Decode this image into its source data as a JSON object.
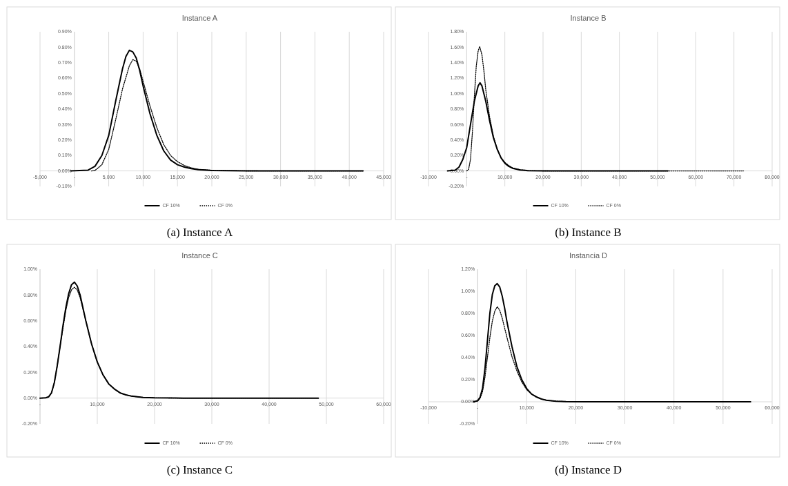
{
  "chart_data": [
    {
      "type": "line",
      "title": "Instance A",
      "xlim": [
        -5000,
        45000
      ],
      "ylim": [
        -0.1,
        0.9
      ],
      "xticks": [
        {
          "value": -5000,
          "label": "-5,000"
        },
        {
          "value": 0,
          "label": "-"
        },
        {
          "value": 5000,
          "label": "5,000"
        },
        {
          "value": 10000,
          "label": "10,000"
        },
        {
          "value": 15000,
          "label": "15,000"
        },
        {
          "value": 20000,
          "label": "20,000"
        },
        {
          "value": 25000,
          "label": "25,000"
        },
        {
          "value": 30000,
          "label": "30,000"
        },
        {
          "value": 35000,
          "label": "35,000"
        },
        {
          "value": 40000,
          "label": "40,000"
        },
        {
          "value": 45000,
          "label": "45,000"
        }
      ],
      "yticks": [
        {
          "value": -0.1,
          "label": "-0.10%"
        },
        {
          "value": 0,
          "label": "0.00%"
        },
        {
          "value": 0.1,
          "label": "0.10%"
        },
        {
          "value": 0.2,
          "label": "0.20%"
        },
        {
          "value": 0.3,
          "label": "0.30%"
        },
        {
          "value": 0.4,
          "label": "0.40%"
        },
        {
          "value": 0.5,
          "label": "0.50%"
        },
        {
          "value": 0.6,
          "label": "0.60%"
        },
        {
          "value": 0.7,
          "label": "0.70%"
        },
        {
          "value": 0.8,
          "label": "0.80%"
        },
        {
          "value": 0.9,
          "label": "0.90%"
        }
      ],
      "grid": "x",
      "legend": "bottom",
      "annotations": [
        "(a) Instance A"
      ],
      "series": [
        {
          "name": "CF 10%",
          "color": "#000000",
          "line_style": "solid",
          "x": [
            -500,
            2000,
            3000,
            4000,
            5000,
            6000,
            7000,
            7500,
            8000,
            8500,
            9000,
            9500,
            10000,
            11000,
            12000,
            13000,
            14000,
            15000,
            16000,
            17000,
            18000,
            20000,
            25000,
            30000,
            42000
          ],
          "values": [
            0,
            0.005,
            0.03,
            0.1,
            0.23,
            0.45,
            0.66,
            0.74,
            0.78,
            0.77,
            0.73,
            0.65,
            0.55,
            0.37,
            0.23,
            0.13,
            0.07,
            0.04,
            0.025,
            0.015,
            0.008,
            0.003,
            0.0005,
            0,
            0
          ]
        },
        {
          "name": "CF 0%",
          "color": "#000000",
          "line_style": "dotted",
          "x": [
            2500,
            3000,
            4000,
            5000,
            6000,
            7000,
            8000,
            8500,
            9000,
            9500,
            10000,
            11000,
            12000,
            13000,
            14000,
            15000,
            16000,
            17000,
            18000,
            20000,
            25000,
            30000,
            42000
          ],
          "values": [
            0,
            0.003,
            0.04,
            0.14,
            0.33,
            0.53,
            0.68,
            0.72,
            0.71,
            0.66,
            0.58,
            0.42,
            0.28,
            0.17,
            0.1,
            0.06,
            0.035,
            0.02,
            0.011,
            0.004,
            0.0005,
            0,
            0
          ]
        }
      ]
    },
    {
      "type": "line",
      "title": "Instance B",
      "xlim": [
        -10000,
        80000
      ],
      "ylim": [
        -0.2,
        1.8
      ],
      "xticks": [
        {
          "value": -10000,
          "label": "-10,000"
        },
        {
          "value": 0,
          "label": "-"
        },
        {
          "value": 10000,
          "label": "10,000"
        },
        {
          "value": 20000,
          "label": "20,000"
        },
        {
          "value": 30000,
          "label": "30,000"
        },
        {
          "value": 40000,
          "label": "40,000"
        },
        {
          "value": 50000,
          "label": "50,000"
        },
        {
          "value": 60000,
          "label": "60,000"
        },
        {
          "value": 70000,
          "label": "70,000"
        },
        {
          "value": 80000,
          "label": "80,000"
        }
      ],
      "yticks": [
        {
          "value": -0.2,
          "label": "-0.20%"
        },
        {
          "value": 0,
          "label": "0.00%"
        },
        {
          "value": 0.2,
          "label": "0.20%"
        },
        {
          "value": 0.4,
          "label": "0.40%"
        },
        {
          "value": 0.6,
          "label": "0.60%"
        },
        {
          "value": 0.8,
          "label": "0.80%"
        },
        {
          "value": 1.0,
          "label": "1.00%"
        },
        {
          "value": 1.2,
          "label": "1.20%"
        },
        {
          "value": 1.4,
          "label": "1.40%"
        },
        {
          "value": 1.6,
          "label": "1.60%"
        },
        {
          "value": 1.8,
          "label": "1.80%"
        }
      ],
      "grid": "x",
      "legend": "bottom",
      "annotations": [
        "(b) Instance B"
      ],
      "series": [
        {
          "name": "CF 10%",
          "color": "#000000",
          "line_style": "solid",
          "x": [
            -5000,
            -3000,
            -2000,
            -1000,
            0,
            1000,
            2000,
            3000,
            3500,
            4000,
            5000,
            6000,
            7000,
            8000,
            9000,
            10000,
            11000,
            12000,
            14000,
            16000,
            20000,
            25000,
            52700
          ],
          "values": [
            0,
            0.01,
            0.05,
            0.15,
            0.3,
            0.6,
            0.9,
            1.1,
            1.14,
            1.1,
            0.9,
            0.65,
            0.43,
            0.28,
            0.17,
            0.1,
            0.06,
            0.035,
            0.012,
            0.004,
            0.001,
            0,
            0
          ]
        },
        {
          "name": "CF 0%",
          "color": "#000000",
          "line_style": "dotted",
          "x": [
            0,
            500,
            1000,
            1500,
            2000,
            2500,
            3000,
            3400,
            4000,
            4500,
            5000,
            6000,
            7000,
            8000,
            9000,
            10000,
            11000,
            12000,
            14000,
            16000,
            20000,
            25000,
            72500
          ],
          "values": [
            0,
            0.02,
            0.15,
            0.5,
            0.95,
            1.35,
            1.55,
            1.61,
            1.5,
            1.3,
            1.05,
            0.7,
            0.45,
            0.28,
            0.17,
            0.11,
            0.07,
            0.04,
            0.015,
            0.005,
            0.001,
            0,
            0
          ]
        }
      ]
    },
    {
      "type": "line",
      "title": "Instance C",
      "xlim": [
        0,
        60000
      ],
      "ylim": [
        -0.2,
        1.0
      ],
      "xticks": [
        {
          "value": 0,
          "label": "-"
        },
        {
          "value": 10000,
          "label": "10,000"
        },
        {
          "value": 20000,
          "label": "20,000"
        },
        {
          "value": 30000,
          "label": "30,000"
        },
        {
          "value": 40000,
          "label": "40,000"
        },
        {
          "value": 50000,
          "label": "50,000"
        },
        {
          "value": 60000,
          "label": "60,000"
        }
      ],
      "yticks": [
        {
          "value": -0.2,
          "label": "-0.20%"
        },
        {
          "value": 0,
          "label": "0.00%"
        },
        {
          "value": 0.2,
          "label": "0.20%"
        },
        {
          "value": 0.4,
          "label": "0.40%"
        },
        {
          "value": 0.6,
          "label": "0.60%"
        },
        {
          "value": 0.8,
          "label": "0.80%"
        },
        {
          "value": 1.0,
          "label": "1.00%"
        }
      ],
      "grid": "x",
      "legend": "bottom",
      "annotations": [
        "(c) Instance C"
      ],
      "series": [
        {
          "name": "CF 10%",
          "color": "#000000",
          "line_style": "solid",
          "x": [
            0,
            1000,
            1500,
            2000,
            2500,
            3000,
            3500,
            4000,
            4500,
            5000,
            5500,
            6000,
            6500,
            7000,
            7500,
            8000,
            9000,
            10000,
            11000,
            12000,
            13000,
            14000,
            15000,
            16000,
            18000,
            20000,
            25000,
            48600
          ],
          "values": [
            0,
            0.002,
            0.01,
            0.04,
            0.12,
            0.25,
            0.4,
            0.56,
            0.7,
            0.81,
            0.88,
            0.9,
            0.87,
            0.8,
            0.7,
            0.6,
            0.42,
            0.28,
            0.18,
            0.11,
            0.07,
            0.04,
            0.025,
            0.015,
            0.005,
            0.002,
            0,
            0
          ]
        },
        {
          "name": "CF 0%",
          "color": "#000000",
          "line_style": "dotted",
          "x": [
            0,
            1000,
            1500,
            2000,
            2500,
            3000,
            3500,
            4000,
            4500,
            5000,
            5500,
            6000,
            6500,
            7000,
            7500,
            8000,
            9000,
            10000,
            11000,
            12000,
            13000,
            14000,
            15000,
            16000,
            18000,
            20000,
            25000,
            48600
          ],
          "values": [
            0,
            0.002,
            0.01,
            0.04,
            0.12,
            0.25,
            0.4,
            0.54,
            0.68,
            0.78,
            0.84,
            0.86,
            0.84,
            0.78,
            0.69,
            0.6,
            0.42,
            0.28,
            0.18,
            0.11,
            0.07,
            0.04,
            0.025,
            0.015,
            0.005,
            0.002,
            0,
            0
          ]
        }
      ]
    },
    {
      "type": "line",
      "title": "Instancia D",
      "xlim": [
        -10000,
        60000
      ],
      "ylim": [
        -0.2,
        1.2
      ],
      "xticks": [
        {
          "value": -10000,
          "label": "-10,000"
        },
        {
          "value": 0,
          "label": "-"
        },
        {
          "value": 10000,
          "label": "10,000"
        },
        {
          "value": 20000,
          "label": "20,000"
        },
        {
          "value": 30000,
          "label": "30,000"
        },
        {
          "value": 40000,
          "label": "40,000"
        },
        {
          "value": 50000,
          "label": "50,000"
        },
        {
          "value": 60000,
          "label": "60,000"
        }
      ],
      "yticks": [
        {
          "value": -0.2,
          "label": "-0.20%"
        },
        {
          "value": 0,
          "label": "0.00%"
        },
        {
          "value": 0.2,
          "label": "0.20%"
        },
        {
          "value": 0.4,
          "label": "0.40%"
        },
        {
          "value": 0.6,
          "label": "0.60%"
        },
        {
          "value": 0.8,
          "label": "0.80%"
        },
        {
          "value": 1.0,
          "label": "1.00%"
        },
        {
          "value": 1.2,
          "label": "1.20%"
        }
      ],
      "grid": "x",
      "legend": "bottom",
      "annotations": [
        "(d) Instance D"
      ],
      "series": [
        {
          "name": "CF 10%",
          "color": "#000000",
          "line_style": "solid",
          "x": [
            -800,
            0,
            500,
            1000,
            1500,
            2000,
            2500,
            3000,
            3500,
            4000,
            4500,
            5000,
            5500,
            6000,
            7000,
            8000,
            9000,
            10000,
            11000,
            12000,
            13000,
            14000,
            16000,
            18000,
            22000,
            55600
          ],
          "values": [
            0,
            0.01,
            0.04,
            0.12,
            0.3,
            0.55,
            0.8,
            0.97,
            1.05,
            1.07,
            1.04,
            0.96,
            0.85,
            0.72,
            0.5,
            0.32,
            0.2,
            0.12,
            0.07,
            0.045,
            0.025,
            0.014,
            0.005,
            0.002,
            0,
            0
          ]
        },
        {
          "name": "CF 0%",
          "color": "#000000",
          "line_style": "dotted",
          "x": [
            -800,
            0,
            500,
            1000,
            1500,
            2000,
            2500,
            3000,
            3500,
            4000,
            4500,
            5000,
            5500,
            6000,
            7000,
            8000,
            9000,
            10000,
            11000,
            12000,
            13000,
            14000,
            16000,
            18000,
            22000,
            55600
          ],
          "values": [
            0,
            0.005,
            0.03,
            0.09,
            0.22,
            0.4,
            0.58,
            0.73,
            0.82,
            0.86,
            0.83,
            0.76,
            0.67,
            0.58,
            0.41,
            0.28,
            0.18,
            0.11,
            0.07,
            0.04,
            0.025,
            0.014,
            0.005,
            0.002,
            0,
            0
          ]
        }
      ]
    }
  ]
}
